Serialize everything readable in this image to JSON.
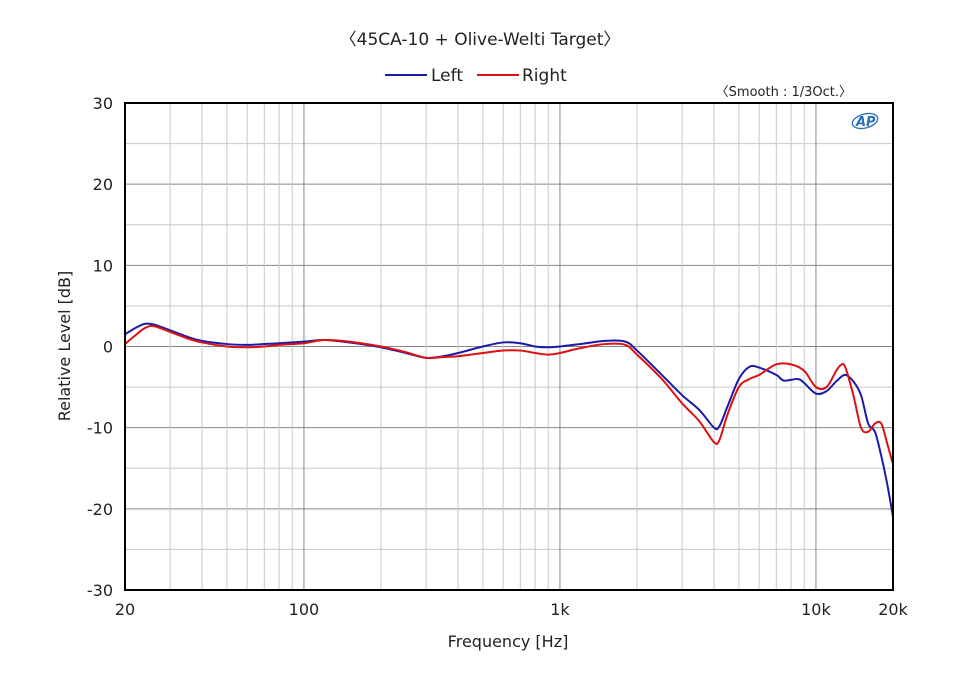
{
  "chart_data": {
    "type": "line",
    "title": "〈45CA-10 + Olive-Welti Target〉",
    "subtitle": "〈Smooth : 1/3Oct.〉",
    "xlabel": "Frequency [Hz]",
    "ylabel": "Relative Level [dB]",
    "xscale": "log",
    "xlim": [
      20,
      20000
    ],
    "ylim": [
      -30,
      30
    ],
    "x_ticks": [
      {
        "value": 20,
        "label": "20"
      },
      {
        "value": 100,
        "label": "100"
      },
      {
        "value": 1000,
        "label": "1k"
      },
      {
        "value": 10000,
        "label": "10k"
      },
      {
        "value": 20000,
        "label": "20k"
      }
    ],
    "y_ticks": [
      {
        "value": 30,
        "label": "30"
      },
      {
        "value": 20,
        "label": "20"
      },
      {
        "value": 10,
        "label": "10"
      },
      {
        "value": 0,
        "label": "0"
      },
      {
        "value": -10,
        "label": "-10"
      },
      {
        "value": -20,
        "label": "-20"
      },
      {
        "value": -30,
        "label": "-30"
      }
    ],
    "grid": true,
    "legend_position": "top-center",
    "series": [
      {
        "name": "Left",
        "color": "#1a1aaa",
        "points": [
          [
            20,
            1.5
          ],
          [
            22,
            2.3
          ],
          [
            24,
            2.8
          ],
          [
            26,
            2.7
          ],
          [
            30,
            2.0
          ],
          [
            35,
            1.2
          ],
          [
            40,
            0.7
          ],
          [
            50,
            0.3
          ],
          [
            60,
            0.2
          ],
          [
            70,
            0.3
          ],
          [
            80,
            0.4
          ],
          [
            100,
            0.6
          ],
          [
            120,
            0.8
          ],
          [
            150,
            0.5
          ],
          [
            200,
            -0.1
          ],
          [
            250,
            -0.8
          ],
          [
            300,
            -1.4
          ],
          [
            350,
            -1.2
          ],
          [
            400,
            -0.8
          ],
          [
            500,
            0.0
          ],
          [
            600,
            0.5
          ],
          [
            700,
            0.4
          ],
          [
            800,
            0.0
          ],
          [
            900,
            -0.1
          ],
          [
            1000,
            0.0
          ],
          [
            1200,
            0.3
          ],
          [
            1500,
            0.7
          ],
          [
            1800,
            0.6
          ],
          [
            2000,
            -0.5
          ],
          [
            2500,
            -3.5
          ],
          [
            3000,
            -6.0
          ],
          [
            3500,
            -7.8
          ],
          [
            4000,
            -10.0
          ],
          [
            4200,
            -9.8
          ],
          [
            4500,
            -7.5
          ],
          [
            5000,
            -4.0
          ],
          [
            5500,
            -2.5
          ],
          [
            6000,
            -2.6
          ],
          [
            7000,
            -3.5
          ],
          [
            7500,
            -4.2
          ],
          [
            8500,
            -4.0
          ],
          [
            9000,
            -4.5
          ],
          [
            10000,
            -5.8
          ],
          [
            11000,
            -5.5
          ],
          [
            12000,
            -4.3
          ],
          [
            13000,
            -3.5
          ],
          [
            14000,
            -4.3
          ],
          [
            15000,
            -6.0
          ],
          [
            16000,
            -9.5
          ],
          [
            17000,
            -10.5
          ],
          [
            18000,
            -13.5
          ],
          [
            19000,
            -17.0
          ],
          [
            20000,
            -21.0
          ]
        ]
      },
      {
        "name": "Right",
        "color": "#dd1111",
        "points": [
          [
            20,
            0.3
          ],
          [
            22,
            1.4
          ],
          [
            24,
            2.3
          ],
          [
            26,
            2.5
          ],
          [
            30,
            1.8
          ],
          [
            35,
            1.0
          ],
          [
            40,
            0.5
          ],
          [
            50,
            0.0
          ],
          [
            60,
            -0.1
          ],
          [
            70,
            0.0
          ],
          [
            80,
            0.2
          ],
          [
            100,
            0.4
          ],
          [
            120,
            0.8
          ],
          [
            150,
            0.6
          ],
          [
            200,
            0.0
          ],
          [
            250,
            -0.7
          ],
          [
            300,
            -1.4
          ],
          [
            350,
            -1.3
          ],
          [
            400,
            -1.2
          ],
          [
            500,
            -0.8
          ],
          [
            600,
            -0.5
          ],
          [
            700,
            -0.5
          ],
          [
            800,
            -0.8
          ],
          [
            900,
            -1.0
          ],
          [
            1000,
            -0.8
          ],
          [
            1200,
            -0.2
          ],
          [
            1500,
            0.3
          ],
          [
            1800,
            0.2
          ],
          [
            2000,
            -1.0
          ],
          [
            2500,
            -4.0
          ],
          [
            3000,
            -7.0
          ],
          [
            3500,
            -9.2
          ],
          [
            4000,
            -11.8
          ],
          [
            4200,
            -11.5
          ],
          [
            4500,
            -8.5
          ],
          [
            5000,
            -5.0
          ],
          [
            5500,
            -4.0
          ],
          [
            6000,
            -3.5
          ],
          [
            7000,
            -2.2
          ],
          [
            8000,
            -2.2
          ],
          [
            9000,
            -3.0
          ],
          [
            10000,
            -5.0
          ],
          [
            11000,
            -5.0
          ],
          [
            12000,
            -3.0
          ],
          [
            12500,
            -2.3
          ],
          [
            13000,
            -2.5
          ],
          [
            14000,
            -6.0
          ],
          [
            15000,
            -10.0
          ],
          [
            16000,
            -10.5
          ],
          [
            17000,
            -9.5
          ],
          [
            18000,
            -9.5
          ],
          [
            19000,
            -12.0
          ],
          [
            20000,
            -14.5
          ]
        ]
      }
    ]
  }
}
